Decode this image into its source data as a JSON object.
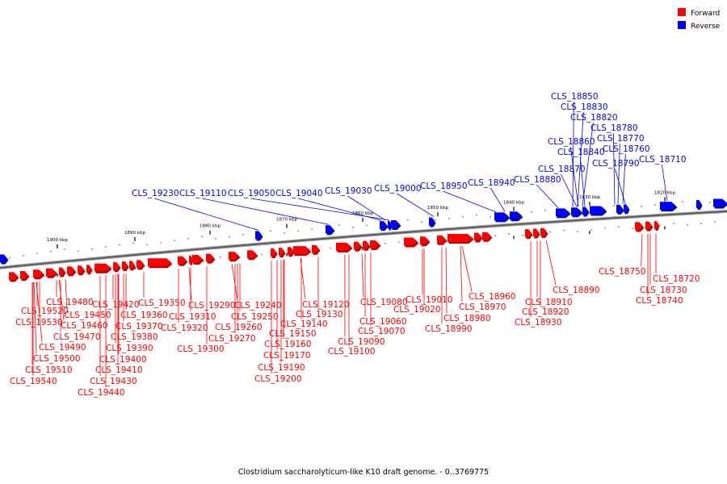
{
  "legend": {
    "forward": {
      "label": "Forward",
      "color": "#ff0000"
    },
    "reverse": {
      "label": "Reverse",
      "color": "#0000ff"
    }
  },
  "caption": "Clostridium saccharolyticum-like K10 draft genome. - 0..3769775",
  "kbp_labels": [
    "1900 kbp",
    "1890 kbp",
    "1880 kbp",
    "1870 kbp",
    "1860 kbp",
    "1850 kbp",
    "1840 kbp",
    "1830 kbp",
    "1820 kbp"
  ],
  "reverse_genes": [
    "CLS_18850",
    "CLS_18830",
    "CLS_18820",
    "CLS_18780",
    "CLS_18770",
    "CLS_18860",
    "CLS_18760",
    "CLS_18840",
    "CLS_18870",
    "CLS_18790",
    "CLS_18710",
    "CLS_18880",
    "CLS_18940",
    "CLS_18950",
    "CLS_19000",
    "CLS_19030",
    "CLS_19040",
    "CLS_19050",
    "CLS_19110",
    "CLS_19230"
  ],
  "forward_genes": [
    "CLS_19480",
    "CLS_19520",
    "CLS_19530",
    "CLS_19450",
    "CLS_19460",
    "CLS_19470",
    "CLS_19490",
    "CLS_19500",
    "CLS_19510",
    "CLS_19540",
    "CLS_19420",
    "CLS_19360",
    "CLS_19370",
    "CLS_19380",
    "CLS_19390",
    "CLS_19400",
    "CLS_19410",
    "CLS_19430",
    "CLS_19440",
    "CLS_19350",
    "CLS_19290",
    "CLS_19310",
    "CLS_19320",
    "CLS_19300",
    "CLS_19240",
    "CLS_19250",
    "CLS_19260",
    "CLS_19270",
    "CLS_19120",
    "CLS_19130",
    "CLS_19140",
    "CLS_19150",
    "CLS_19160",
    "CLS_19170",
    "CLS_19190",
    "CLS_19200",
    "CLS_19080",
    "CLS_19060",
    "CLS_19070",
    "CLS_19090",
    "CLS_19100",
    "CLS_19010",
    "CLS_19020",
    "CLS_18960",
    "CLS_18970",
    "CLS_18980",
    "CLS_18990",
    "CLS_18890",
    "CLS_18910",
    "CLS_18920",
    "CLS_18930",
    "CLS_18750",
    "CLS_18720",
    "CLS_18730",
    "CLS_18740"
  ]
}
